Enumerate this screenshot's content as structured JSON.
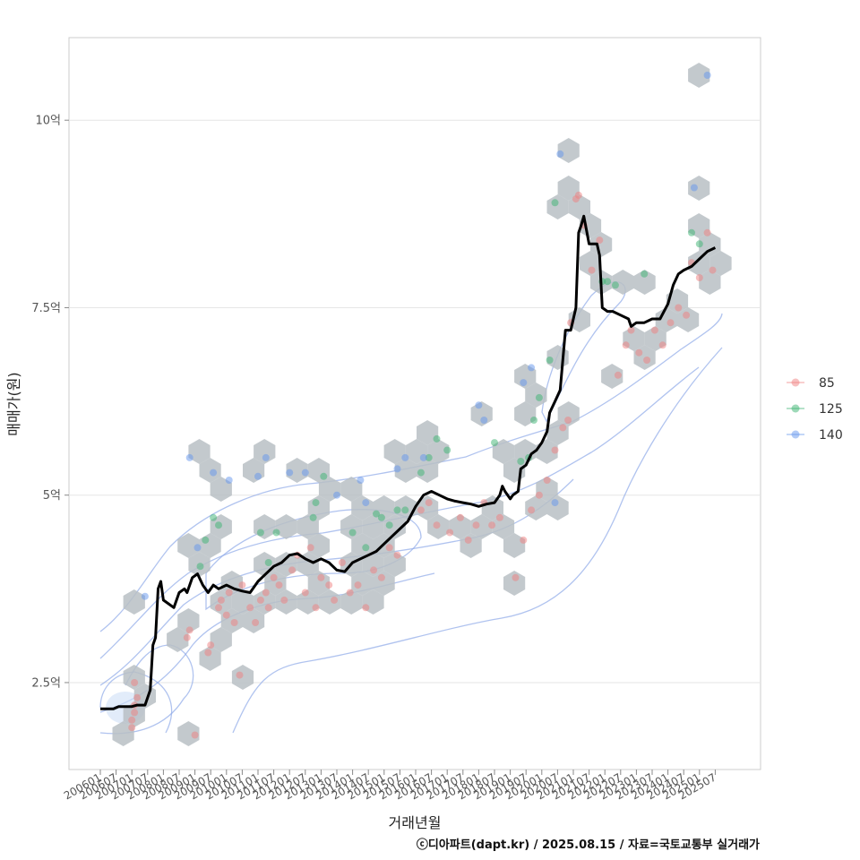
{
  "chart_data": {
    "type": "scatter",
    "xlabel": "거래년월",
    "ylabel": "매매가(원)",
    "caption": "ⓒ디아파트(dapt.kr) / 2025.08.15 / 자료=국토교통부 실거래가",
    "x_ticks": [
      "200601",
      "200607",
      "200701",
      "200707",
      "200801",
      "200807",
      "200901",
      "200907",
      "201001",
      "201007",
      "201101",
      "201107",
      "201201",
      "201207",
      "201301",
      "201307",
      "201401",
      "201407",
      "201501",
      "201507",
      "201601",
      "201607",
      "201701",
      "201707",
      "201801",
      "201807",
      "201901",
      "201907",
      "202001",
      "202007",
      "202101",
      "202107",
      "202201",
      "202207",
      "202301",
      "202307",
      "202401",
      "202407",
      "202501",
      "202507"
    ],
    "y_ticks": [
      {
        "value": 2.5,
        "label": "2.5억"
      },
      {
        "value": 5,
        "label": "5억"
      },
      {
        "value": 7.5,
        "label": "7.5억"
      },
      {
        "value": 10,
        "label": "10억"
      }
    ],
    "ylim": [
      1.3,
      11.1
    ],
    "grid": "horizontal",
    "legend_position": "right",
    "legend": [
      {
        "name": "85",
        "color": "#f08080"
      },
      {
        "name": "125",
        "color": "#3cb371"
      },
      {
        "name": "140",
        "color": "#6495ed"
      }
    ],
    "colors": {
      "trend": "#000000",
      "hex": "#b9bfc4",
      "contour": "#8ea9e8",
      "background": "#ffffff"
    },
    "trend_line": [
      [
        "2006-01",
        2.15
      ],
      [
        "2006-06",
        2.15
      ],
      [
        "2006-08",
        2.18
      ],
      [
        "2007-01",
        2.18
      ],
      [
        "2007-03",
        2.2
      ],
      [
        "2007-06",
        2.2
      ],
      [
        "2007-08",
        2.4
      ],
      [
        "2007-09",
        3.0
      ],
      [
        "2007-10",
        3.1
      ],
      [
        "2007-11",
        3.75
      ],
      [
        "2007-12",
        3.85
      ],
      [
        "2008-01",
        3.6
      ],
      [
        "2008-03",
        3.55
      ],
      [
        "2008-05",
        3.5
      ],
      [
        "2008-07",
        3.7
      ],
      [
        "2008-09",
        3.75
      ],
      [
        "2008-10",
        3.7
      ],
      [
        "2008-12",
        3.9
      ],
      [
        "2009-02",
        3.95
      ],
      [
        "2009-04",
        3.8
      ],
      [
        "2009-06",
        3.7
      ],
      [
        "2009-08",
        3.8
      ],
      [
        "2009-10",
        3.75
      ],
      [
        "2010-01",
        3.8
      ],
      [
        "2010-04",
        3.75
      ],
      [
        "2010-07",
        3.72
      ],
      [
        "2010-10",
        3.7
      ],
      [
        "2011-01",
        3.85
      ],
      [
        "2011-04",
        3.95
      ],
      [
        "2011-07",
        4.05
      ],
      [
        "2011-10",
        4.1
      ],
      [
        "2012-01",
        4.2
      ],
      [
        "2012-04",
        4.22
      ],
      [
        "2012-07",
        4.15
      ],
      [
        "2012-10",
        4.1
      ],
      [
        "2013-01",
        4.15
      ],
      [
        "2013-04",
        4.1
      ],
      [
        "2013-07",
        4.0
      ],
      [
        "2013-10",
        3.98
      ],
      [
        "2014-01",
        4.1
      ],
      [
        "2014-04",
        4.15
      ],
      [
        "2014-07",
        4.2
      ],
      [
        "2014-10",
        4.25
      ],
      [
        "2015-01",
        4.35
      ],
      [
        "2015-04",
        4.45
      ],
      [
        "2015-07",
        4.55
      ],
      [
        "2015-10",
        4.65
      ],
      [
        "2016-01",
        4.85
      ],
      [
        "2016-04",
        5.0
      ],
      [
        "2016-07",
        5.05
      ],
      [
        "2016-10",
        5.0
      ],
      [
        "2017-01",
        4.95
      ],
      [
        "2017-04",
        4.92
      ],
      [
        "2017-07",
        4.9
      ],
      [
        "2017-10",
        4.88
      ],
      [
        "2018-01",
        4.85
      ],
      [
        "2018-04",
        4.88
      ],
      [
        "2018-07",
        4.9
      ],
      [
        "2018-09",
        5.0
      ],
      [
        "2018-10",
        5.12
      ],
      [
        "2018-11",
        5.05
      ],
      [
        "2019-01",
        4.95
      ],
      [
        "2019-02",
        5.0
      ],
      [
        "2019-04",
        5.05
      ],
      [
        "2019-05",
        5.35
      ],
      [
        "2019-07",
        5.4
      ],
      [
        "2019-09",
        5.55
      ],
      [
        "2019-11",
        5.6
      ],
      [
        "2020-01",
        5.7
      ],
      [
        "2020-03",
        5.85
      ],
      [
        "2020-04",
        6.1
      ],
      [
        "2020-06",
        6.25
      ],
      [
        "2020-08",
        6.4
      ],
      [
        "2020-10",
        7.2
      ],
      [
        "2020-12",
        7.2
      ],
      [
        "2021-02",
        7.5
      ],
      [
        "2021-03",
        8.5
      ],
      [
        "2021-04",
        8.6
      ],
      [
        "2021-05",
        8.72
      ],
      [
        "2021-07",
        8.35
      ],
      [
        "2021-09",
        8.35
      ],
      [
        "2021-10",
        8.35
      ],
      [
        "2021-11",
        8.2
      ],
      [
        "2021-12",
        7.5
      ],
      [
        "2022-02",
        7.45
      ],
      [
        "2022-04",
        7.45
      ],
      [
        "2022-07",
        7.4
      ],
      [
        "2022-10",
        7.35
      ],
      [
        "2022-11",
        7.25
      ],
      [
        "2023-01",
        7.3
      ],
      [
        "2023-04",
        7.3
      ],
      [
        "2023-07",
        7.35
      ],
      [
        "2023-10",
        7.35
      ],
      [
        "2024-01",
        7.55
      ],
      [
        "2024-03",
        7.8
      ],
      [
        "2024-05",
        7.95
      ],
      [
        "2024-07",
        8.0
      ],
      [
        "2024-10",
        8.05
      ],
      [
        "2025-01",
        8.15
      ],
      [
        "2025-04",
        8.25
      ],
      [
        "2025-07",
        8.3
      ]
    ],
    "series": [
      {
        "name": "85",
        "color": "#f08080",
        "points": [
          [
            "2007-01",
            1.9
          ],
          [
            "2007-01",
            2.0
          ],
          [
            "2007-02",
            2.1
          ],
          [
            "2007-02",
            2.2
          ],
          [
            "2007-03",
            2.3
          ],
          [
            "2007-02",
            2.5
          ],
          [
            "2008-10",
            3.1
          ],
          [
            "2008-11",
            3.2
          ],
          [
            "2009-06",
            2.9
          ],
          [
            "2009-07",
            3.0
          ],
          [
            "2009-01",
            1.8
          ],
          [
            "2009-10",
            3.5
          ],
          [
            "2009-11",
            3.6
          ],
          [
            "2010-01",
            3.4
          ],
          [
            "2010-02",
            3.7
          ],
          [
            "2010-04",
            3.3
          ],
          [
            "2010-06",
            2.6
          ],
          [
            "2010-07",
            3.8
          ],
          [
            "2010-10",
            3.5
          ],
          [
            "2010-12",
            3.3
          ],
          [
            "2011-02",
            3.6
          ],
          [
            "2011-04",
            3.7
          ],
          [
            "2011-05",
            3.5
          ],
          [
            "2011-07",
            3.9
          ],
          [
            "2011-09",
            3.8
          ],
          [
            "2011-11",
            3.6
          ],
          [
            "2012-02",
            4.0
          ],
          [
            "2012-04",
            4.2
          ],
          [
            "2012-07",
            3.7
          ],
          [
            "2012-09",
            4.3
          ],
          [
            "2012-11",
            3.5
          ],
          [
            "2013-01",
            3.9
          ],
          [
            "2013-04",
            3.8
          ],
          [
            "2013-06",
            3.6
          ],
          [
            "2013-09",
            4.1
          ],
          [
            "2013-12",
            3.7
          ],
          [
            "2014-03",
            3.8
          ],
          [
            "2014-06",
            3.5
          ],
          [
            "2014-09",
            4.0
          ],
          [
            "2014-12",
            3.9
          ],
          [
            "2015-03",
            4.3
          ],
          [
            "2015-06",
            4.2
          ],
          [
            "2016-03",
            4.8
          ],
          [
            "2016-06",
            4.9
          ],
          [
            "2016-09",
            4.6
          ],
          [
            "2017-02",
            4.5
          ],
          [
            "2017-06",
            4.7
          ],
          [
            "2017-09",
            4.4
          ],
          [
            "2017-12",
            4.6
          ],
          [
            "2018-03",
            4.9
          ],
          [
            "2018-06",
            4.6
          ],
          [
            "2018-09",
            4.7
          ],
          [
            "2019-03",
            3.9
          ],
          [
            "2019-06",
            4.4
          ],
          [
            "2019-09",
            4.8
          ],
          [
            "2019-12",
            5.0
          ],
          [
            "2020-03",
            5.2
          ],
          [
            "2020-06",
            5.6
          ],
          [
            "2020-09",
            5.9
          ],
          [
            "2020-11",
            6.0
          ],
          [
            "2020-12",
            7.3
          ],
          [
            "2021-02",
            8.95
          ],
          [
            "2021-03",
            9.0
          ],
          [
            "2021-05",
            8.6
          ],
          [
            "2021-08",
            8.0
          ],
          [
            "2021-11",
            8.4
          ],
          [
            "2022-06",
            6.6
          ],
          [
            "2022-09",
            7.0
          ],
          [
            "2022-11",
            7.2
          ],
          [
            "2023-02",
            6.9
          ],
          [
            "2023-05",
            6.8
          ],
          [
            "2023-08",
            7.2
          ],
          [
            "2023-11",
            7.0
          ],
          [
            "2024-02",
            7.3
          ],
          [
            "2024-05",
            7.5
          ],
          [
            "2024-08",
            7.4
          ],
          [
            "2024-10",
            8.1
          ],
          [
            "2025-01",
            7.9
          ],
          [
            "2025-04",
            8.5
          ],
          [
            "2025-06",
            8.0
          ]
        ]
      },
      {
        "name": "125",
        "color": "#3cb371",
        "points": [
          [
            "2009-03",
            4.05
          ],
          [
            "2009-05",
            4.4
          ],
          [
            "2009-08",
            4.7
          ],
          [
            "2009-10",
            4.6
          ],
          [
            "2011-02",
            4.5
          ],
          [
            "2011-05",
            4.1
          ],
          [
            "2011-08",
            4.5
          ],
          [
            "2012-10",
            4.7
          ],
          [
            "2012-11",
            4.9
          ],
          [
            "2013-02",
            5.25
          ],
          [
            "2014-01",
            4.5
          ],
          [
            "2014-06",
            4.3
          ],
          [
            "2014-10",
            4.75
          ],
          [
            "2014-12",
            4.7
          ],
          [
            "2015-03",
            4.6
          ],
          [
            "2015-06",
            4.8
          ],
          [
            "2015-09",
            4.8
          ],
          [
            "2016-03",
            5.3
          ],
          [
            "2016-06",
            5.5
          ],
          [
            "2016-09",
            5.75
          ],
          [
            "2017-01",
            5.6
          ],
          [
            "2018-07",
            5.7
          ],
          [
            "2019-05",
            5.45
          ],
          [
            "2019-08",
            5.5
          ],
          [
            "2019-10",
            6.0
          ],
          [
            "2019-12",
            6.3
          ],
          [
            "2020-04",
            6.8
          ],
          [
            "2020-06",
            8.9
          ],
          [
            "2021-12",
            7.85
          ],
          [
            "2022-02",
            7.85
          ],
          [
            "2022-05",
            7.8
          ],
          [
            "2023-04",
            7.95
          ],
          [
            "2024-10",
            8.5
          ],
          [
            "2025-01",
            8.35
          ]
        ]
      },
      {
        "name": "140",
        "color": "#6495ed",
        "points": [
          [
            "2007-06",
            3.65
          ],
          [
            "2008-11",
            5.5
          ],
          [
            "2009-02",
            4.3
          ],
          [
            "2009-08",
            5.3
          ],
          [
            "2010-02",
            5.2
          ],
          [
            "2011-01",
            5.25
          ],
          [
            "2011-04",
            5.5
          ],
          [
            "2012-01",
            5.3
          ],
          [
            "2012-07",
            5.3
          ],
          [
            "2013-07",
            5.0
          ],
          [
            "2014-04",
            5.2
          ],
          [
            "2014-06",
            4.9
          ],
          [
            "2015-06",
            5.35
          ],
          [
            "2015-09",
            5.5
          ],
          [
            "2016-04",
            5.5
          ],
          [
            "2018-01",
            6.2
          ],
          [
            "2018-03",
            6.0
          ],
          [
            "2019-06",
            6.5
          ],
          [
            "2019-09",
            6.7
          ],
          [
            "2020-06",
            4.9
          ],
          [
            "2020-08",
            9.55
          ],
          [
            "2024-11",
            9.1
          ],
          [
            "2025-04",
            10.6
          ]
        ]
      }
    ]
  }
}
